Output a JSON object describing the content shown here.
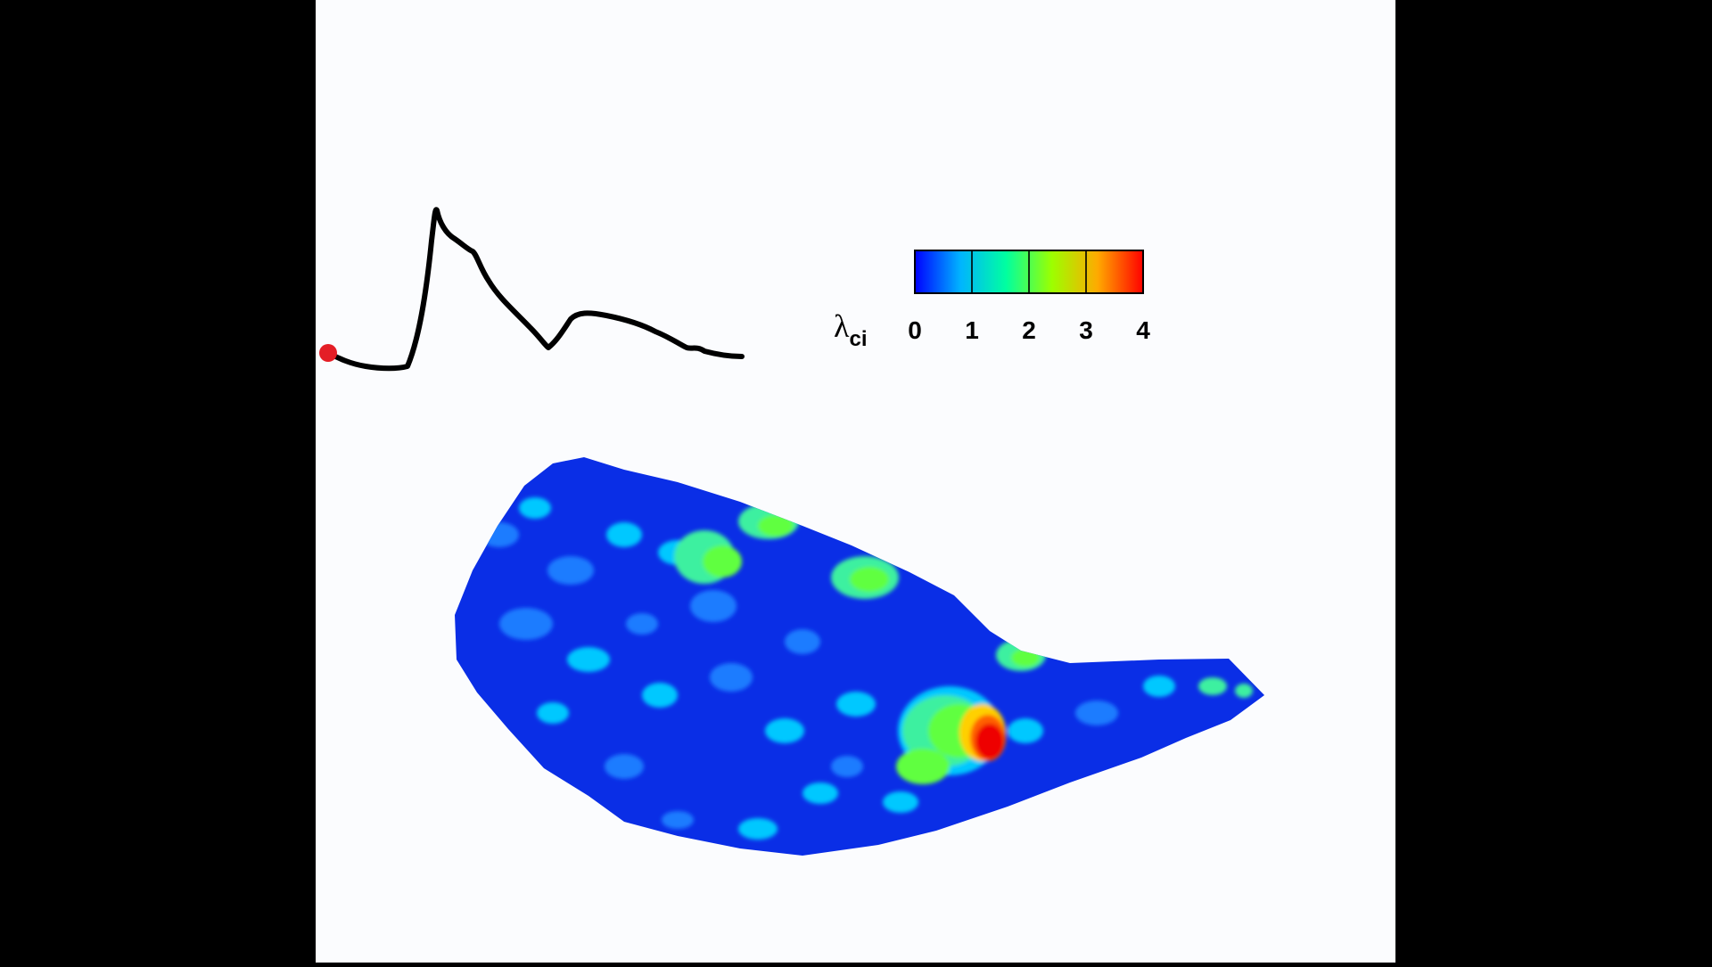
{
  "figure": {
    "background_color": "#000000",
    "panel_color": "#fbfcfe"
  },
  "waveform": {
    "trace_color": "#000000",
    "marker_color": "#e41e26",
    "marker_position_fraction": 0.0
  },
  "colorbar": {
    "symbol": "λ",
    "subscript": "ci",
    "ticks": [
      "0",
      "1",
      "2",
      "3",
      "4"
    ],
    "range": [
      0,
      4
    ],
    "colormap_stops": [
      "#0000ff",
      "#00b4ff",
      "#00ffa0",
      "#9cff00",
      "#ffaa00",
      "#ff0000"
    ]
  },
  "contour_map": {
    "base_color": "#0a2ee6",
    "levels": [
      {
        "value": 0.6,
        "color": "#1f7cff"
      },
      {
        "value": 1.3,
        "color": "#00c8ff"
      },
      {
        "value": 1.8,
        "color": "#3cf0a0"
      },
      {
        "value": 2.4,
        "color": "#60ff40"
      },
      {
        "value": 3.0,
        "color": "#ffd000"
      },
      {
        "value": 3.6,
        "color": "#ff6000"
      },
      {
        "value": 4.0,
        "color": "#ee0000"
      }
    ]
  }
}
